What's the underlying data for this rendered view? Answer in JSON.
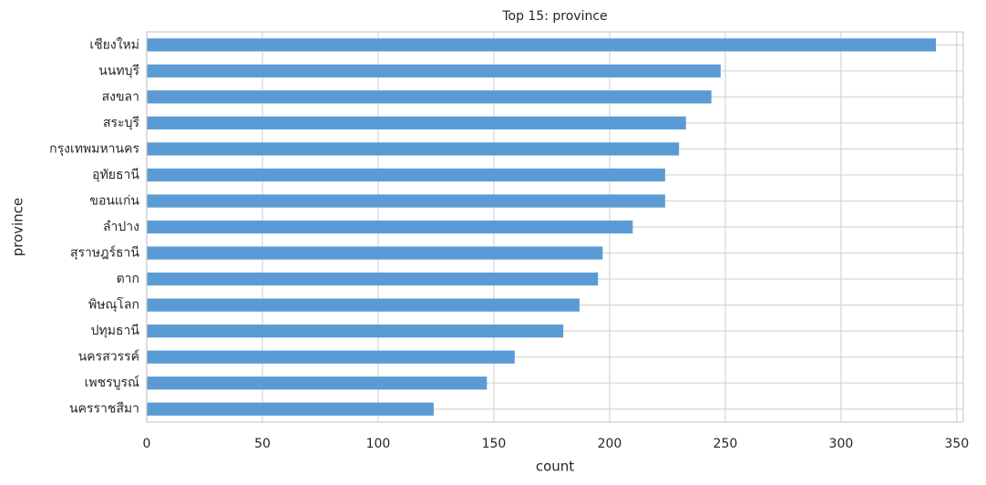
{
  "chart_data": {
    "type": "barh",
    "title": "Top 15: province",
    "xlabel": "count",
    "ylabel": "province",
    "categories": [
      "เชียงใหม่",
      "นนทบุรี",
      "สงขลา",
      "สระบุรี",
      "กรุงเทพมหานคร",
      "อุทัยธานี",
      "ขอนแก่น",
      "ลำปาง",
      "สุราษฎร์ธานี",
      "ตาก",
      "พิษณุโลก",
      "ปทุมธานี",
      "นครสวรรค์",
      "เพชรบูรณ์",
      "นครราชสีมา"
    ],
    "values": [
      341,
      248,
      244,
      233,
      230,
      224,
      224,
      210,
      197,
      195,
      187,
      180,
      159,
      147,
      124
    ],
    "color": "#5b9bd5",
    "xlim": [
      0,
      352.8
    ],
    "xticks": [
      0,
      50,
      100,
      150,
      200,
      250,
      300,
      350
    ],
    "grid": true
  }
}
